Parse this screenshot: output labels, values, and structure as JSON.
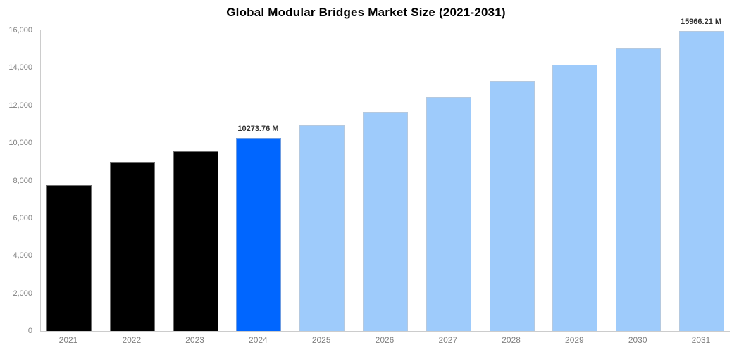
{
  "chart_data": {
    "type": "bar",
    "title": "Global Modular Bridges Market Size (2021-2031)",
    "categories": [
      "2021",
      "2022",
      "2023",
      "2024",
      "2025",
      "2026",
      "2027",
      "2028",
      "2029",
      "2030",
      "2031"
    ],
    "values": [
      7770,
      9000,
      9560,
      10273.76,
      10940,
      11650,
      12440,
      13300,
      14150,
      15050,
      15966.21
    ],
    "bar_colors": [
      "#000000",
      "#000000",
      "#000000",
      "#0066ff",
      "#9ecbfb",
      "#9ecbfb",
      "#9ecbfb",
      "#9ecbfb",
      "#9ecbfb",
      "#9ecbfb",
      "#9ecbfb"
    ],
    "data_labels": [
      null,
      null,
      null,
      "10273.76 M",
      null,
      null,
      null,
      null,
      null,
      null,
      "15966.21 M"
    ],
    "xlabel": "",
    "ylabel": "",
    "ylim": [
      0,
      16000
    ],
    "ytick_step": 2000,
    "ytick_labels": [
      "0",
      "2,000",
      "4,000",
      "6,000",
      "8,000",
      "10,000",
      "12,000",
      "14,000",
      "16,000"
    ],
    "grid": false,
    "legend": null,
    "colors": {
      "historical_bar": "#000000",
      "highlight_bar": "#0066ff",
      "forecast_bar": "#9ecbfb",
      "axis_line": "#cccccc",
      "axis_text": "#808080",
      "title_text": "#000000",
      "data_label_text": "#333333",
      "background": "#ffffff"
    }
  }
}
